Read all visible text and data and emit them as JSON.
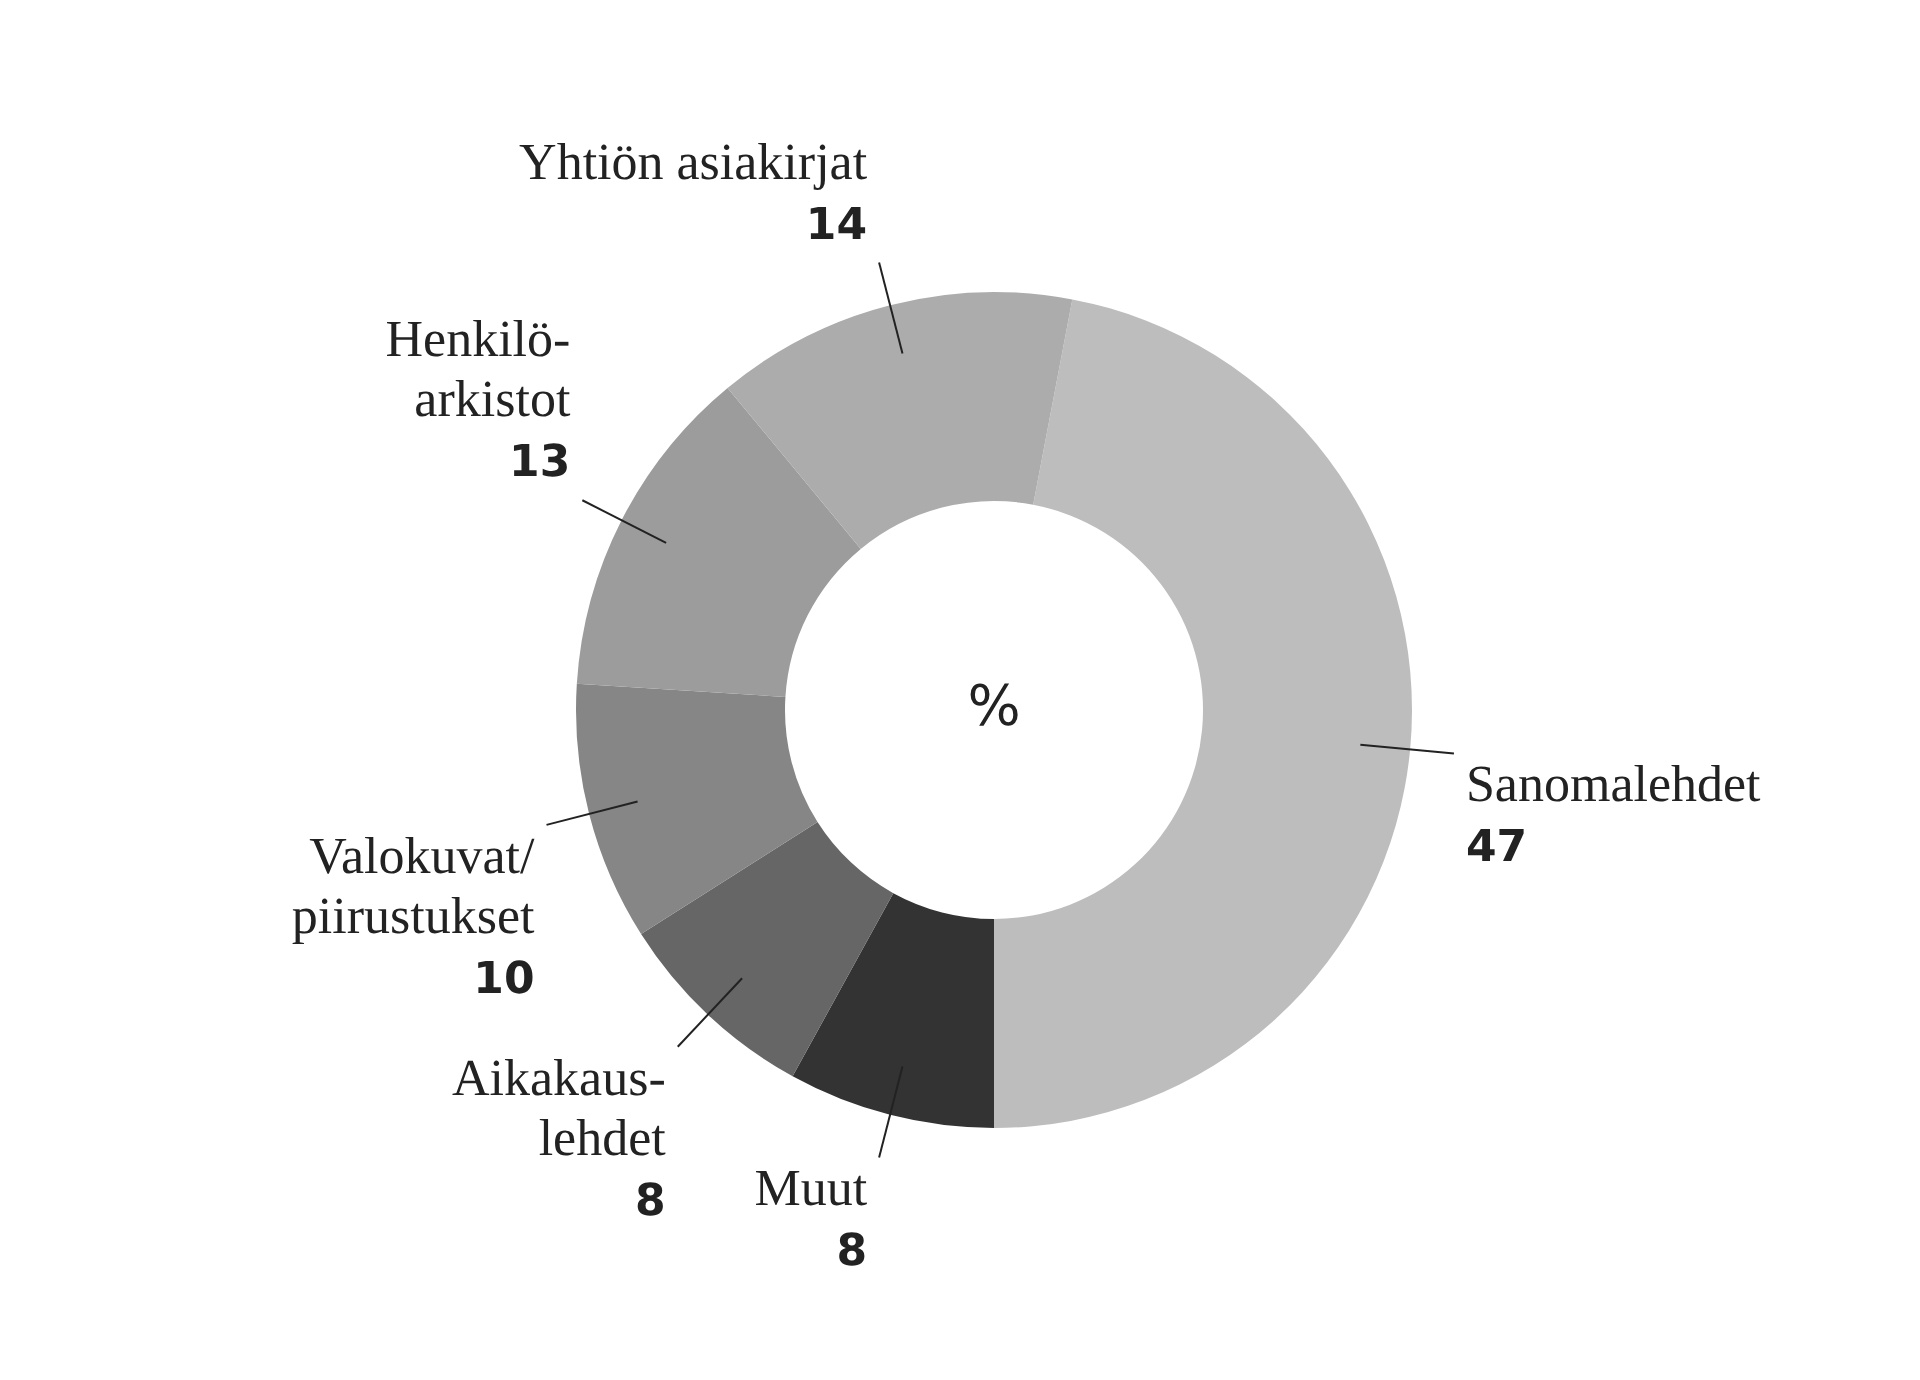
{
  "chart_data": {
    "type": "donut",
    "categories": [
      "Sanomalehdet",
      "Muut",
      "Aikakaus-lehdet",
      "Valokuvat/piirustukset",
      "Henkilö-arkistot",
      "Yhtiön asiakirjat"
    ],
    "values": [
      47,
      8,
      8,
      10,
      13,
      14
    ],
    "colors": [
      "#bdbdbd",
      "#333333",
      "#666666",
      "#868686",
      "#9c9c9c",
      "#acacac"
    ],
    "data_labels": true,
    "legend": false,
    "annotations": [
      "%"
    ]
  }
}
